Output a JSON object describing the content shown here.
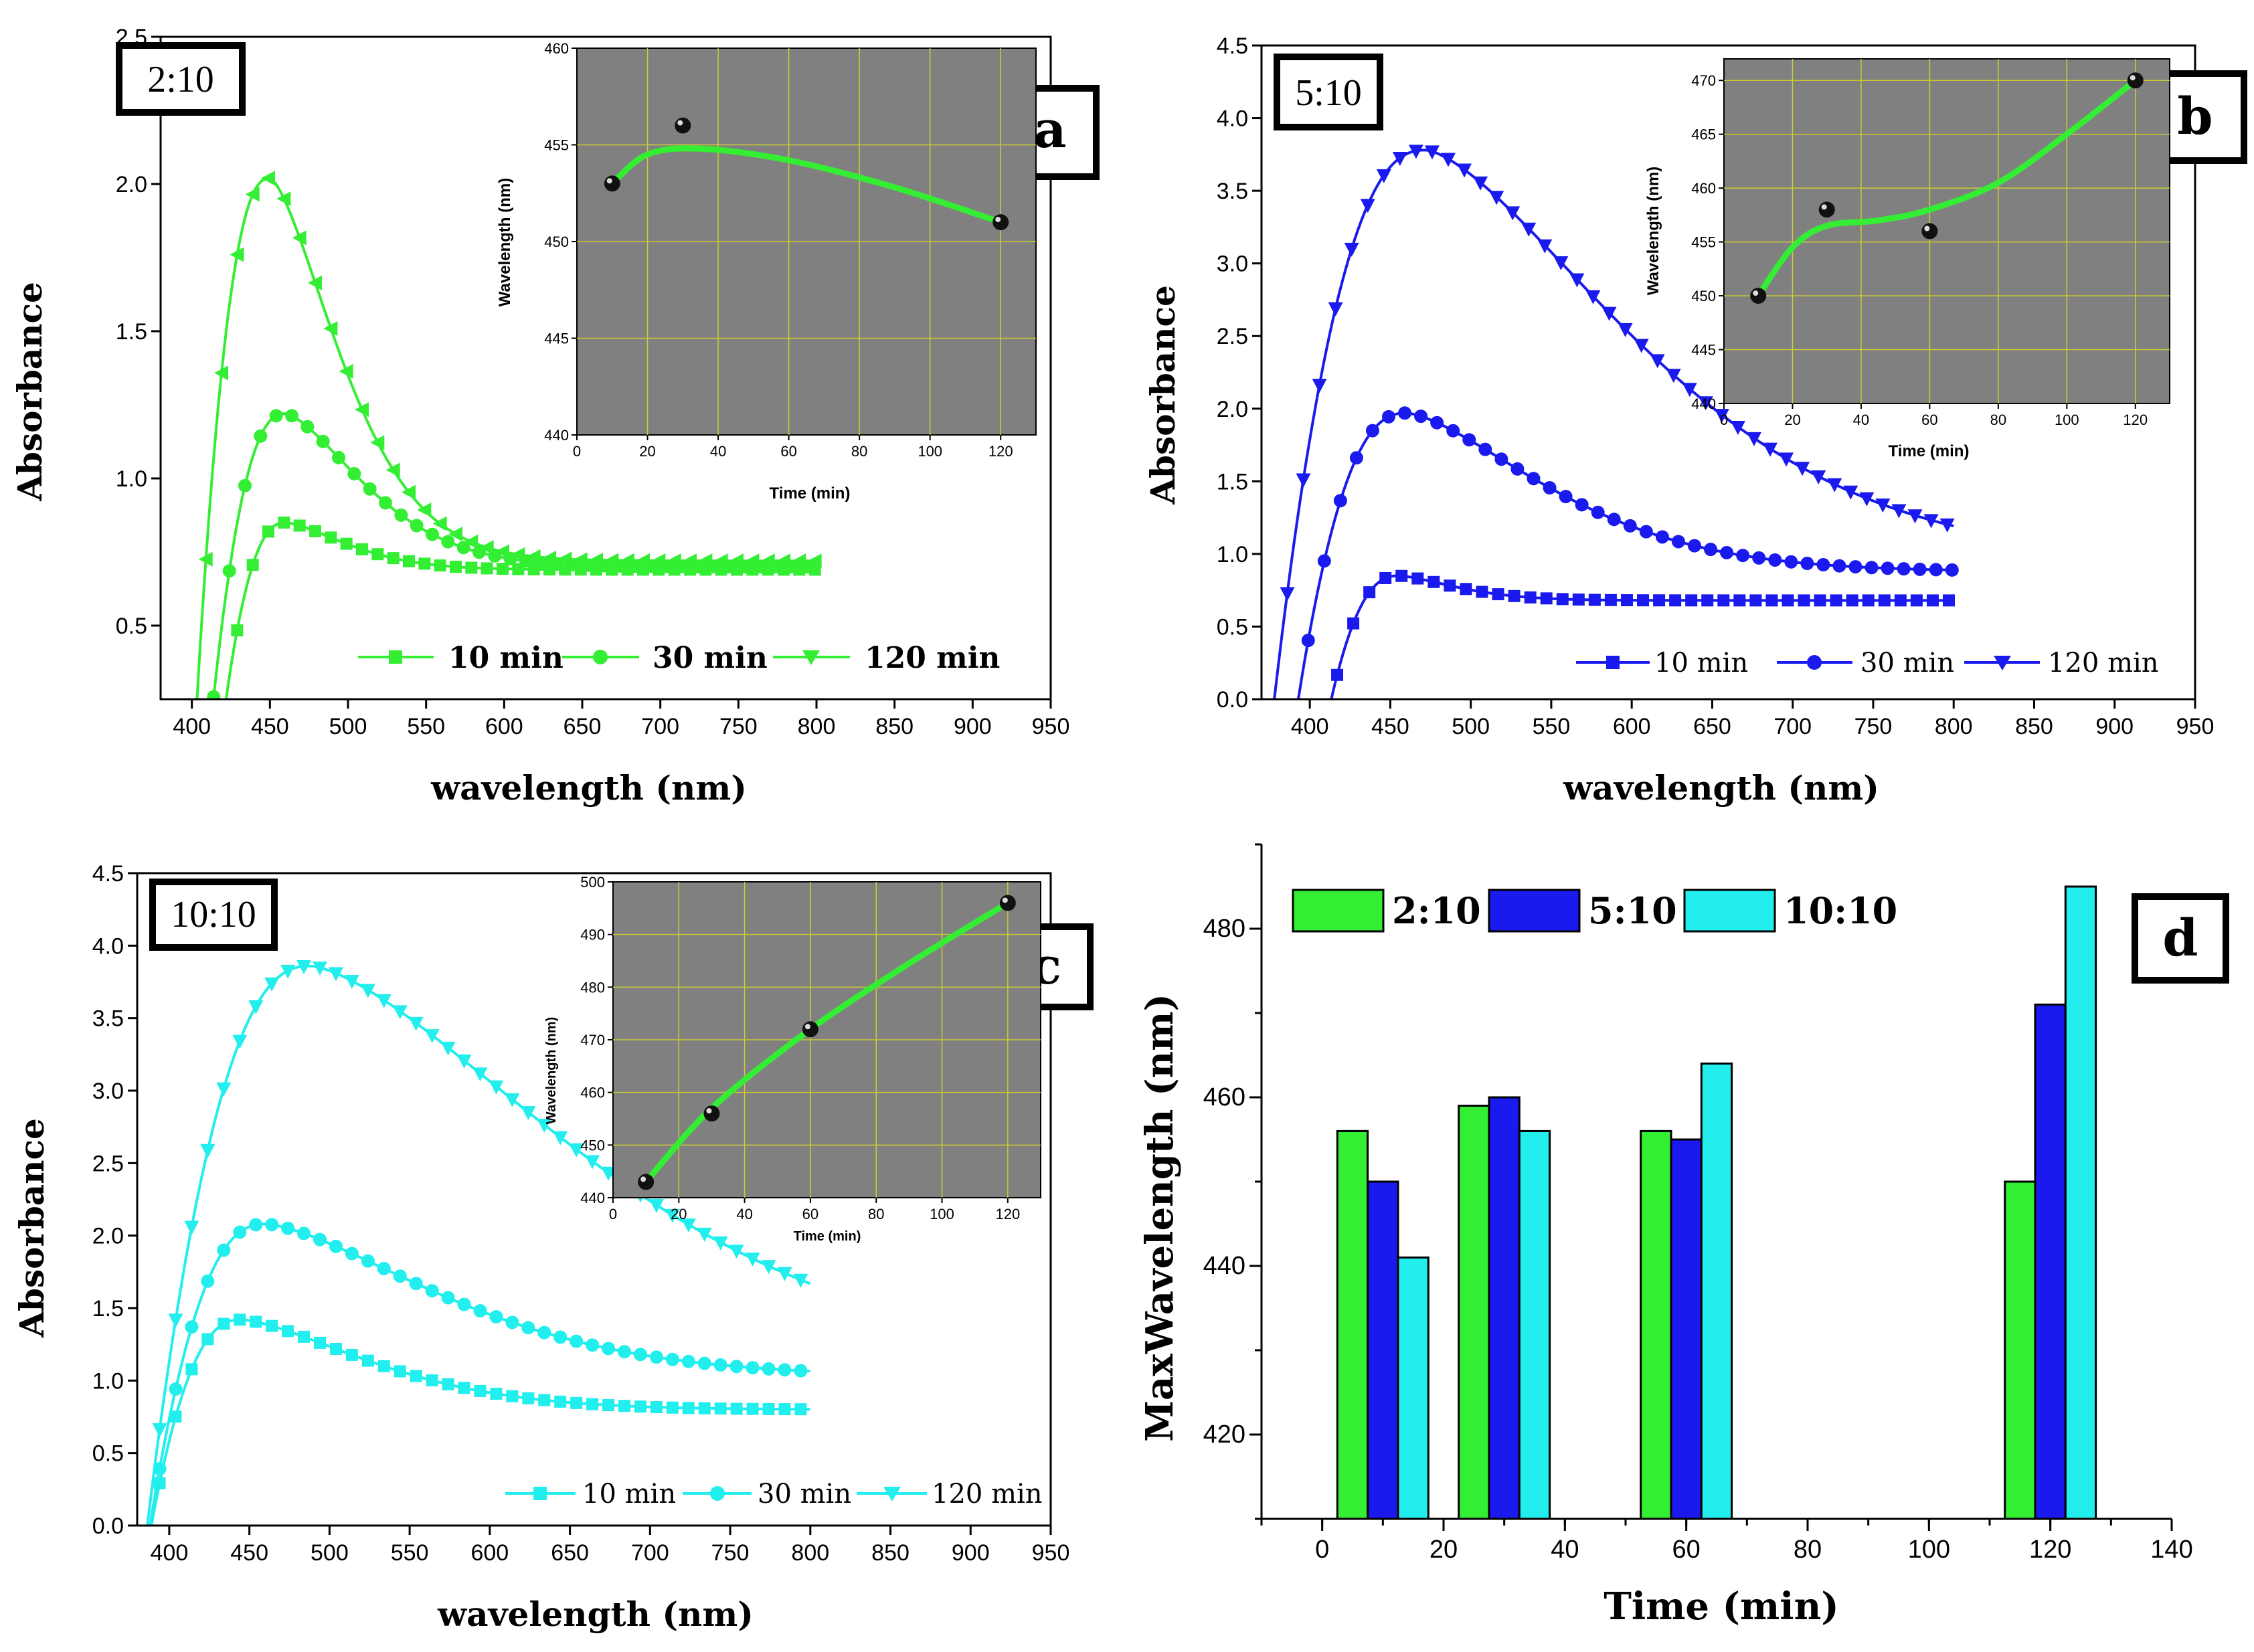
{
  "chart_data": [
    {
      "id": "a",
      "type": "line",
      "label": "2:10",
      "letter": "a",
      "xlabel": "wavelength (nm)",
      "ylabel": "Absorbance",
      "xlim": [
        380,
        950
      ],
      "ylim": [
        0.25,
        2.5
      ],
      "xticks": [
        400,
        450,
        500,
        550,
        600,
        650,
        700,
        750,
        800,
        850,
        900,
        950
      ],
      "yticks": [
        0.5,
        1.0,
        1.5,
        2.0,
        2.5
      ],
      "ytick_labels": [
        "0.5",
        "1.0",
        "1.5",
        "2.0",
        "2.5"
      ],
      "color": "#33ee33",
      "series": [
        {
          "name": "10 min",
          "marker": "square",
          "curve": {
            "onset": 405,
            "peak_x": 460,
            "peak_y": 0.85,
            "tail_y": 0.69,
            "rise": 22,
            "decay": 55,
            "end": 800
          }
        },
        {
          "name": "30 min",
          "marker": "circle",
          "curve": {
            "onset": 400,
            "peak_x": 460,
            "peak_y": 1.22,
            "tail_y": 0.7,
            "rise": 24,
            "decay": 70,
            "end": 800
          }
        },
        {
          "name": "120 min",
          "marker": "triangle-left",
          "curve": {
            "onset": 395,
            "peak_x": 450,
            "peak_y": 2.02,
            "tail_y": 0.72,
            "rise": 22,
            "decay": 62,
            "end": 800
          }
        }
      ],
      "legend_labels": [
        "10 min",
        "30 min",
        "120 min"
      ],
      "inset": {
        "xlabel": "Time (min)",
        "ylabel": "Wavelength (nm)",
        "xlim": [
          0,
          130
        ],
        "ylim": [
          440,
          460
        ],
        "xticks": [
          0,
          20,
          40,
          60,
          80,
          100,
          120
        ],
        "yticks": [
          440,
          445,
          450,
          455,
          460
        ],
        "points": [
          [
            10,
            453
          ],
          [
            30,
            456
          ],
          [
            120,
            451
          ]
        ],
        "fit": [
          [
            10,
            453
          ],
          [
            20,
            454.5
          ],
          [
            35,
            454.8
          ],
          [
            60,
            454.2
          ],
          [
            90,
            452.8
          ],
          [
            120,
            451
          ]
        ]
      }
    },
    {
      "id": "b",
      "type": "line",
      "label": "5:10",
      "letter": "b",
      "xlabel": "wavelength (nm)",
      "ylabel": "Absorbance",
      "xlim": [
        370,
        950
      ],
      "ylim": [
        0,
        4.5
      ],
      "xticks": [
        400,
        450,
        500,
        550,
        600,
        650,
        700,
        750,
        800,
        850,
        900,
        950
      ],
      "yticks": [
        0,
        0.5,
        1.0,
        1.5,
        2.0,
        2.5,
        3.0,
        3.5,
        4.0,
        4.5
      ],
      "ytick_labels": [
        "0.0",
        "0.5",
        "1.0",
        "1.5",
        "2.0",
        "2.5",
        "3.0",
        "3.5",
        "4.0",
        "4.5"
      ],
      "color": "#1a1aee",
      "series": [
        {
          "name": "10 min",
          "marker": "square",
          "curve": {
            "onset": 403,
            "peak_x": 455,
            "peak_y": 0.85,
            "tail_y": 0.68,
            "rise": 20,
            "decay": 50,
            "end": 800
          }
        },
        {
          "name": "30 min",
          "marker": "circle",
          "curve": {
            "onset": 385,
            "peak_x": 460,
            "peak_y": 1.97,
            "tail_y": 0.88,
            "rise": 28,
            "decay": 120,
            "end": 800
          }
        },
        {
          "name": "120 min",
          "marker": "triangle-down",
          "curve": {
            "onset": 372,
            "peak_x": 472,
            "peak_y": 3.78,
            "tail_y": 0.95,
            "rise": 38,
            "decay": 180,
            "end": 800
          }
        }
      ],
      "legend_labels": [
        "10 min",
        "30 min",
        "120 min"
      ],
      "inset": {
        "xlabel": "Time (min)",
        "ylabel": "Wavelength (nm)",
        "xlim": [
          0,
          130
        ],
        "ylim": [
          440,
          472
        ],
        "xticks": [
          0,
          20,
          40,
          60,
          80,
          100,
          120
        ],
        "yticks": [
          440,
          445,
          450,
          455,
          460,
          465,
          470
        ],
        "points": [
          [
            10,
            450
          ],
          [
            30,
            458
          ],
          [
            60,
            456
          ],
          [
            120,
            470
          ]
        ],
        "fit": [
          [
            10,
            450
          ],
          [
            20,
            454.5
          ],
          [
            30,
            456.5
          ],
          [
            45,
            457
          ],
          [
            60,
            458
          ],
          [
            80,
            460.5
          ],
          [
            100,
            465
          ],
          [
            120,
            470
          ]
        ]
      }
    },
    {
      "id": "c",
      "type": "line",
      "label": "10:10",
      "letter": "c",
      "xlabel": "wavelength (nm)",
      "ylabel": "Absorbance",
      "xlim": [
        380,
        950
      ],
      "ylim": [
        0,
        4.5
      ],
      "xticks": [
        400,
        450,
        500,
        550,
        600,
        650,
        700,
        750,
        800,
        850,
        900,
        950
      ],
      "yticks": [
        0,
        0.5,
        1.0,
        1.5,
        2.0,
        2.5,
        3.0,
        3.5,
        4.0,
        4.5
      ],
      "ytick_labels": [
        "0.0",
        "0.5",
        "1.0",
        "1.5",
        "2.0",
        "2.5",
        "3.0",
        "3.5",
        "4.0",
        "4.5"
      ],
      "color": "#22eeee",
      "series": [
        {
          "name": "10 min",
          "marker": "square",
          "curve": {
            "onset": 380,
            "peak_x": 445,
            "peak_y": 1.42,
            "tail_y": 0.8,
            "rise": 24,
            "decay": 110,
            "end": 800
          }
        },
        {
          "name": "30 min",
          "marker": "circle",
          "curve": {
            "onset": 380,
            "peak_x": 460,
            "peak_y": 2.08,
            "tail_y": 1.03,
            "rise": 28,
            "decay": 150,
            "end": 800
          }
        },
        {
          "name": "120 min",
          "marker": "triangle-down",
          "curve": {
            "onset": 380,
            "peak_x": 488,
            "peak_y": 3.86,
            "tail_y": 1.1,
            "rise": 40,
            "decay": 230,
            "end": 800
          }
        }
      ],
      "legend_labels": [
        "10 min",
        "30 min",
        "120 min"
      ],
      "inset": {
        "xlabel": "Time (min)",
        "ylabel": "Wavelength (nm)",
        "xlim": [
          0,
          130
        ],
        "ylim": [
          440,
          500
        ],
        "xticks": [
          0,
          20,
          40,
          60,
          80,
          100,
          120
        ],
        "yticks": [
          440,
          450,
          460,
          470,
          480,
          490,
          500
        ],
        "points": [
          [
            10,
            443
          ],
          [
            30,
            456
          ],
          [
            60,
            472
          ],
          [
            120,
            496
          ]
        ],
        "fit": [
          [
            10,
            443
          ],
          [
            30,
            457
          ],
          [
            60,
            472
          ],
          [
            90,
            484.5
          ],
          [
            120,
            496
          ]
        ]
      }
    },
    {
      "id": "d",
      "type": "bar",
      "letter": "d",
      "xlabel": "Time (min)",
      "ylabel": "MaxWavelength (nm)",
      "xlim": [
        -10,
        140
      ],
      "ylim": [
        410,
        490
      ],
      "xticks": [
        0,
        20,
        40,
        60,
        80,
        100,
        120,
        140
      ],
      "yticks": [
        420,
        440,
        460,
        480
      ],
      "categories": [
        10,
        30,
        60,
        120
      ],
      "series": [
        {
          "name": "2:10",
          "color": "#33ee33",
          "values": [
            456,
            459,
            456,
            450
          ]
        },
        {
          "name": "5:10",
          "color": "#1a1aee",
          "values": [
            450,
            460,
            455,
            471
          ]
        },
        {
          "name": "10:10",
          "color": "#22eeee",
          "values": [
            441,
            456,
            464,
            485
          ]
        }
      ],
      "legend_labels": [
        "2:10",
        "5:10",
        "10:10"
      ]
    }
  ]
}
